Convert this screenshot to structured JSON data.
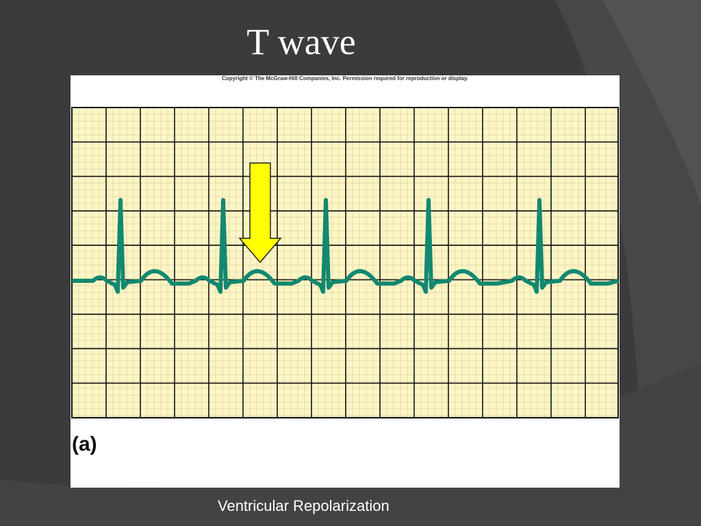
{
  "slide": {
    "title": "T wave",
    "figure": {
      "copyright": "Copyright © The McGraw-Hill Companies, Inc. Permission required for reproduction or display.",
      "label": "(a)"
    },
    "caption": "Ventricular Repolarization"
  }
}
